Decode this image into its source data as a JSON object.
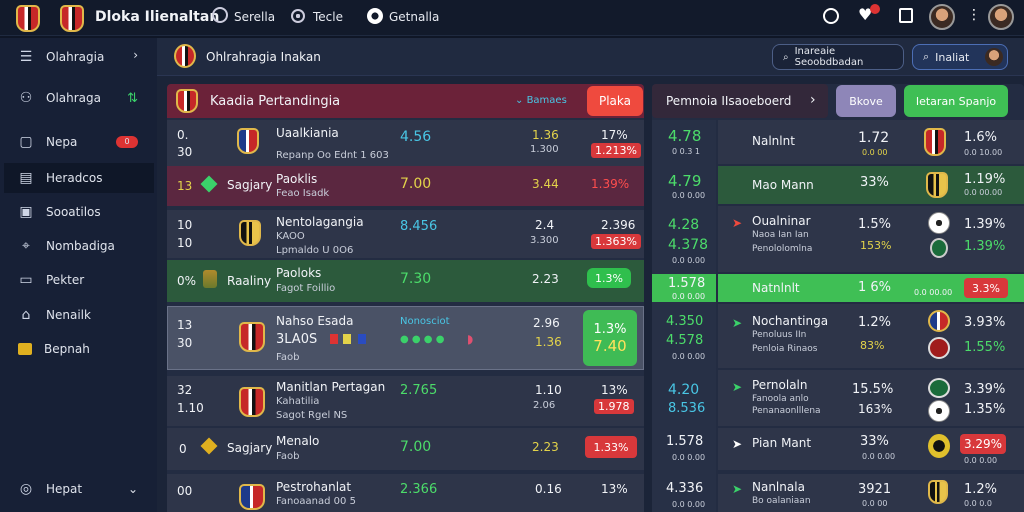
{
  "app": {
    "title": "Dloka Ilienaltan"
  },
  "topbar": {
    "tab1": "Serella",
    "tab2": "Tecle",
    "tab3": "Getnalla"
  },
  "sidebar": {
    "header": "Olahragia",
    "items": [
      {
        "label": "Olahraga",
        "icon": "dumbbell-icon"
      },
      {
        "label": "Nepa",
        "icon": "bell-icon",
        "badge": "0"
      },
      {
        "label": "Heradcos",
        "icon": "grid-icon"
      },
      {
        "label": "Sooatilos",
        "icon": "football-icon"
      },
      {
        "label": "Nombadiga",
        "icon": "flag-icon"
      },
      {
        "label": "Pekter",
        "icon": "calendar-icon"
      },
      {
        "label": "Nenailk",
        "icon": "users-icon"
      },
      {
        "label": "Bepnah",
        "icon": "ticket-icon"
      }
    ],
    "footer": "Hepat"
  },
  "subheader": {
    "title": "Ohlrahragia Inakan",
    "search1": "Inareaie Seoobdbadan",
    "search2": "Inaliat"
  },
  "left_panel": {
    "title": "Kaadia Pertandingia",
    "filter": "Bamaes",
    "live_button": "Plaka",
    "matches": [
      {
        "n1": "0.",
        "n2": "30",
        "team": "Uaalkiania",
        "sub": "Repanp Oo Ednt 1 603",
        "o1": "4.56",
        "o2": "1.36",
        "o2b": "1.300",
        "pct": "17%",
        "pill": "1.213%"
      },
      {
        "n1": "13",
        "team": "Sagjary",
        "name": "Paoklis",
        "sub": "Feao Isadk",
        "o1": "7.00",
        "o2": "3.44",
        "pct": "1.39%"
      },
      {
        "n1": "10",
        "n2": "10",
        "team": "Nentolagangia",
        "code": "KAOO",
        "sub": "Lpmaldo U 0O6",
        "o1": "8.456",
        "o2": "2.4",
        "o2b": "3.300",
        "pct": "2.396",
        "pill": "1.363%"
      },
      {
        "n1": "0%",
        "team": "Raaliny",
        "name": "Paoloks",
        "sub": "Fagot Foillio",
        "o1": "7.30",
        "o2": "2.23",
        "pct": "1.3%"
      },
      {
        "n1": "13",
        "n2": "30",
        "team": "Nahso Esada",
        "code": "3LA0S",
        "sub": "Faob",
        "o1": "Nonosciot",
        "o2": "2.96",
        "o2b": "1.36",
        "pct": "1.3%",
        "pct2": "7.40"
      },
      {
        "n1": "32",
        "n2": "1.10",
        "team": "Manitlan Pertagan",
        "code": "Kahatilia",
        "sub": "Sagot Rgel NS",
        "o1": "2.765",
        "o2": "1.10",
        "o2b": "2.06",
        "pct": "13%",
        "pill": "1.978"
      },
      {
        "n1": "0",
        "team": "Sagjary",
        "name": "Menalo",
        "sub": "Faob",
        "o1": "7.00",
        "o2": "2.23",
        "pct": "1.33%"
      },
      {
        "n1": "00",
        "team": "Pestrohanlat",
        "sub": "Fanoaanad 00 5",
        "o1": "2.366",
        "o2": "0.16",
        "pct": "13%"
      }
    ]
  },
  "right_panel": {
    "title": "Pemnoia IIsaoeboerd",
    "btn1": "Bkove",
    "btn2": "Ietaran Spanjo",
    "left_col": [
      {
        "v": "4.78",
        "s": "0 0.3 1"
      },
      {
        "v": "4.79",
        "s": "0.0 0.00"
      },
      {
        "v": "4.28",
        "v2": "4.378",
        "s": "0.0 0.00"
      },
      {
        "v": "1.578",
        "s": "0.0 0.00"
      },
      {
        "v": "4.350",
        "v2": "4.578",
        "s": "0.0 0.00"
      },
      {
        "v": "4.20",
        "v2": "8.536"
      },
      {
        "v": "1.578",
        "s": "0.0 0.00"
      },
      {
        "v": "4.336",
        "s": "0.0 0.00"
      }
    ],
    "rows": [
      {
        "name": "Nalnlnt",
        "sub": "",
        "pct": "1.72",
        "pct_s": "0.0 00",
        "r": "1.6%",
        "r_s": "0.0 10.00"
      },
      {
        "name": "Mao Mann",
        "pct": "33%",
        "r": "1.19%",
        "r_s": "0.0 00.00"
      },
      {
        "name": "Oualninar",
        "sub": "Naoa Ian Ian",
        "sub2": "Penololomlna",
        "pct": "1.5%",
        "pct2": "153%",
        "r": "1.39%",
        "r2": "1.39%"
      },
      {
        "name": "Natnlnlt",
        "pct": "1 6%",
        "foot": "0.0 00.00",
        "r": "3.3%"
      },
      {
        "name": "Nochantinga",
        "sub": "Penoluus IIn",
        "sub2": "Penloia Rinaos",
        "pct": "1.2%",
        "pct2": "83%",
        "r": "3.93%",
        "r2": "1.55%"
      },
      {
        "name": "Pernolaln",
        "sub": "Fanoola anlo",
        "sub2": "Penanaonlllena",
        "pct": "15.5%",
        "pct2": "163%",
        "r": "3.39%",
        "r2": "1.35%"
      },
      {
        "name": "Pian Mant",
        "pct": "33%",
        "pct_s": "0.0 0.00",
        "r": "3.29%",
        "r_s": "0.0 0.00"
      },
      {
        "name": "Nanlnala",
        "sub": "Bo oalaniaan",
        "pct": "3921",
        "pct_s": "0.0 00",
        "r": "1.2%",
        "r_s": "0.0 0.0"
      }
    ]
  }
}
